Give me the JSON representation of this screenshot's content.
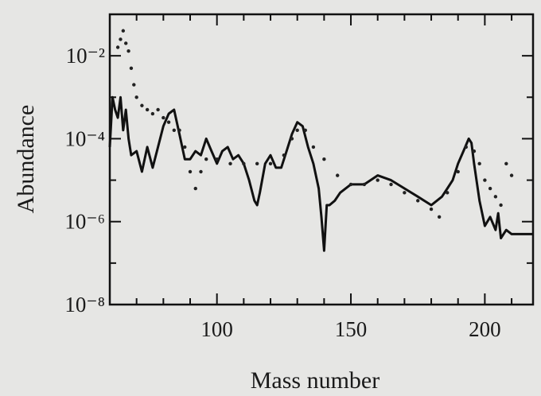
{
  "chart_data": {
    "type": "line",
    "xlabel": "Mass number",
    "ylabel": "Abundance",
    "xlim": [
      60,
      218
    ],
    "ylim": [
      1e-08,
      0.1
    ],
    "log_y": true,
    "xticks": [
      100,
      150,
      200
    ],
    "xminor_ticks": [
      70,
      80,
      90,
      110,
      120,
      130,
      140,
      160,
      170,
      180,
      190,
      210
    ],
    "yticks": [
      {
        "value": 1e-08,
        "label": "10⁻⁸"
      },
      {
        "value": 1e-06,
        "label": "10⁻⁶"
      },
      {
        "value": 0.0001,
        "label": "10⁻⁴"
      },
      {
        "value": 0.01,
        "label": "10⁻²"
      }
    ],
    "yminor_ticks": [
      1e-07,
      1e-05,
      0.001
    ],
    "series": [
      {
        "style": "solid",
        "color": "#111111",
        "x": [
          60,
          61,
          62,
          63,
          64,
          65,
          66,
          67,
          68,
          70,
          72,
          74,
          76,
          78,
          80,
          82,
          84,
          86,
          88,
          90,
          92,
          94,
          96,
          98,
          100,
          102,
          104,
          106,
          108,
          110,
          112,
          114,
          115,
          116,
          118,
          120,
          122,
          124,
          126,
          128,
          130,
          132,
          134,
          136,
          138,
          139,
          140,
          141,
          142,
          144,
          146,
          150,
          155,
          160,
          165,
          170,
          175,
          180,
          184,
          186,
          188,
          190,
          192,
          194,
          195,
          196,
          198,
          200,
          202,
          204,
          205,
          206,
          208,
          210,
          212,
          215,
          218
        ],
        "values": [
          6.3e-05,
          0.001,
          0.0005,
          0.00032,
          0.001,
          0.00016,
          0.0005,
          0.0001,
          4e-05,
          5e-05,
          1.6e-05,
          6.3e-05,
          2e-05,
          6.3e-05,
          0.0002,
          0.0004,
          0.0005,
          0.00013,
          3.2e-05,
          3.2e-05,
          5e-05,
          4e-05,
          0.0001,
          5e-05,
          2.5e-05,
          5e-05,
          6.3e-05,
          3.2e-05,
          4e-05,
          2.5e-05,
          1e-05,
          3.2e-06,
          2.5e-06,
          5e-06,
          2.5e-05,
          4e-05,
          2e-05,
          2e-05,
          5e-05,
          0.00013,
          0.00025,
          0.0002,
          6.3e-05,
          2.5e-05,
          6.3e-06,
          1.3e-06,
          2e-07,
          2.5e-06,
          2.5e-06,
          3.2e-06,
          5e-06,
          7.9e-06,
          7.9e-06,
          1.3e-05,
          1e-05,
          6.3e-06,
          4e-06,
          2.5e-06,
          4e-06,
          6.3e-06,
          1e-05,
          2.5e-05,
          5e-05,
          0.0001,
          7.9e-05,
          2.5e-05,
          3.2e-06,
          7.9e-07,
          1.3e-06,
          6.3e-07,
          1.6e-06,
          4e-07,
          6.3e-07,
          5e-07,
          5e-07,
          5e-07,
          5e-07
        ]
      },
      {
        "style": "dots",
        "color": "#222222",
        "x": [
          63,
          64,
          65,
          66,
          67,
          68,
          69,
          70,
          72,
          74,
          76,
          78,
          80,
          82,
          84,
          86,
          88,
          90,
          92,
          94,
          96,
          100,
          105,
          110,
          115,
          120,
          125,
          128,
          130,
          133,
          136,
          140,
          145,
          150,
          155,
          160,
          165,
          170,
          175,
          180,
          183,
          186,
          190,
          193,
          196,
          198,
          200,
          202,
          204,
          206,
          208,
          210
        ],
        "values": [
          0.016,
          0.025,
          0.04,
          0.02,
          0.013,
          0.005,
          0.002,
          0.001,
          0.00063,
          0.0005,
          0.0004,
          0.0005,
          0.00032,
          0.00025,
          0.00016,
          0.00016,
          6.3e-05,
          1.6e-05,
          6.3e-06,
          1.6e-05,
          3.2e-05,
          3.2e-05,
          2.5e-05,
          2.5e-05,
          2.5e-05,
          2.5e-05,
          4e-05,
          0.0001,
          0.00016,
          0.00016,
          6.3e-05,
          3.2e-05,
          1.3e-05,
          7.9e-06,
          7.9e-06,
          1e-05,
          7.9e-06,
          5e-06,
          3.2e-06,
          2e-06,
          1.3e-06,
          5e-06,
          1.6e-05,
          6.3e-05,
          5e-05,
          2.5e-05,
          1e-05,
          6.3e-06,
          4e-06,
          2.5e-06,
          2.5e-05,
          1.3e-05
        ]
      }
    ]
  }
}
